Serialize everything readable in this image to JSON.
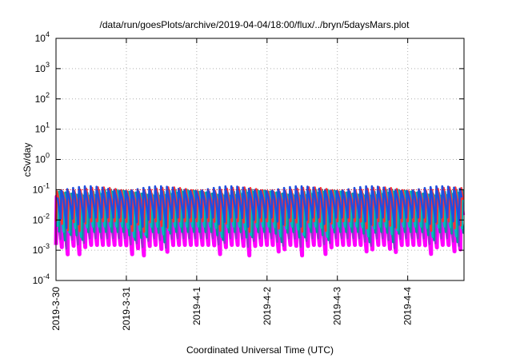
{
  "chart_data": {
    "type": "line",
    "title": "/data/run/goesPlots/archive/2019-04-04/18:00/flux/../bryn/5daysMars.plot",
    "xlabel": "Coordinated Universal Time (UTC)",
    "ylabel": "cSv/day",
    "yscale": "log",
    "ylim": [
      0.0001,
      10000
    ],
    "y_ticks": [
      {
        "value": 0.0001,
        "base": "10",
        "exp": "-4"
      },
      {
        "value": 0.001,
        "base": "10",
        "exp": "-3"
      },
      {
        "value": 0.01,
        "base": "10",
        "exp": "-2"
      },
      {
        "value": 0.1,
        "base": "10",
        "exp": "-1"
      },
      {
        "value": 1,
        "base": "10",
        "exp": "0"
      },
      {
        "value": 10,
        "base": "10",
        "exp": "1"
      },
      {
        "value": 100,
        "base": "10",
        "exp": "2"
      },
      {
        "value": 1000,
        "base": "10",
        "exp": "3"
      },
      {
        "value": 10000,
        "base": "10",
        "exp": "4"
      }
    ],
    "x_start": "2019-03-30",
    "x_days_shown": 5.8,
    "x_ticks": [
      {
        "day": 0,
        "label": "2019-3-30"
      },
      {
        "day": 1,
        "label": "2019-3-31"
      },
      {
        "day": 2,
        "label": "2019-4-1"
      },
      {
        "day": 3,
        "label": "2019-4-2"
      },
      {
        "day": 4,
        "label": "2019-4-3"
      },
      {
        "day": 5,
        "label": "2019-4-4"
      }
    ],
    "grid": true,
    "reference_line": {
      "value": 0.1,
      "color": "#ff0000",
      "style": "dotted"
    },
    "cycle_days": 0.0833,
    "series": [
      {
        "color": "#ff00ff",
        "peak": 0.07,
        "trough": 0.0015
      },
      {
        "color": "#9933cc",
        "peak": 0.08,
        "trough": 0.0025
      },
      {
        "color": "#009999",
        "peak": 0.09,
        "trough": 0.004
      },
      {
        "color": "#00bbbb",
        "peak": 0.1,
        "trough": 0.006
      },
      {
        "color": "#ff3333",
        "peak": 0.12,
        "trough": 0.009
      },
      {
        "color": "#1f4fe0",
        "peak": 0.13,
        "trough": 0.012
      }
    ],
    "colors": {
      "axes": "#000000",
      "grid": "#b0b0b0",
      "background": "#ffffff"
    }
  }
}
